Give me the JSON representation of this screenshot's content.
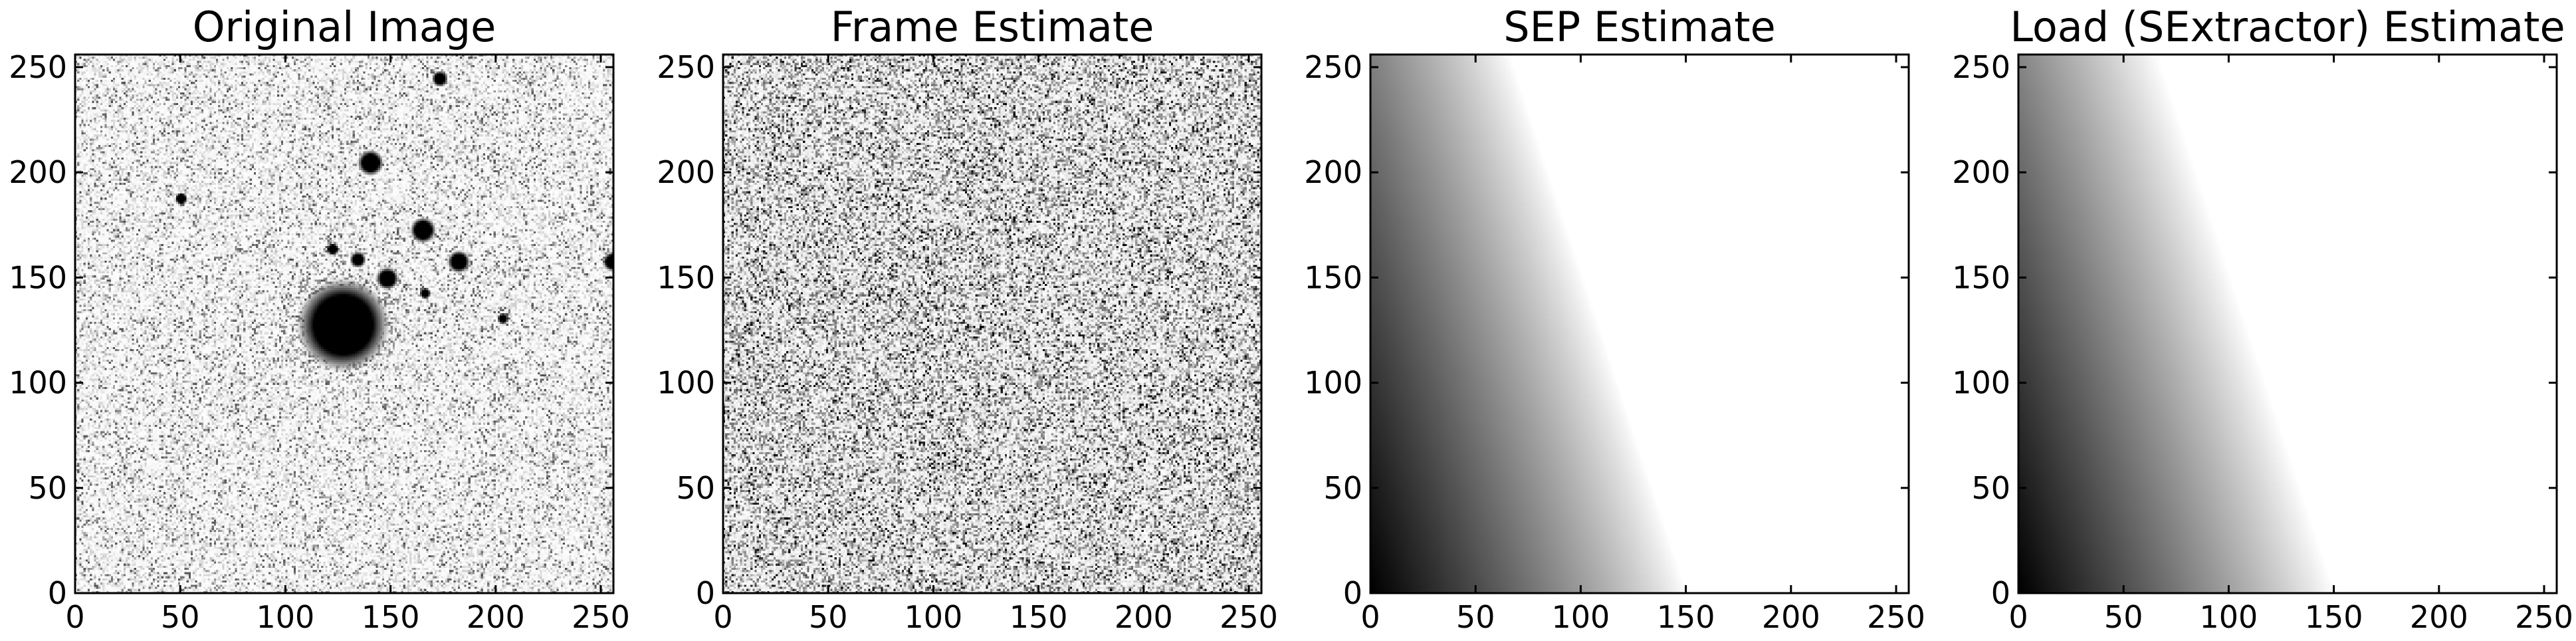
{
  "chart_data": [
    {
      "type": "heatmap",
      "title": "Original Image",
      "colormap": "gray_r",
      "content": "astronomical field: noisy sky background with a bright extended galaxy and several compact sources",
      "xlim": [
        0,
        256
      ],
      "ylim": [
        0,
        256
      ],
      "xticks": [
        0,
        50,
        100,
        150,
        200,
        250
      ],
      "yticks": [
        0,
        50,
        100,
        150,
        200,
        250
      ],
      "xlabel": "",
      "ylabel": "",
      "sources": [
        {
          "x": 127,
          "y": 127,
          "r": 14,
          "halo": 38
        },
        {
          "x": 140,
          "y": 204,
          "r": 4
        },
        {
          "x": 165,
          "y": 172,
          "r": 4
        },
        {
          "x": 182,
          "y": 157,
          "r": 3.5
        },
        {
          "x": 148,
          "y": 149,
          "r": 3.5
        },
        {
          "x": 134,
          "y": 158,
          "r": 2.5
        },
        {
          "x": 122,
          "y": 163,
          "r": 2
        },
        {
          "x": 173,
          "y": 244,
          "r": 2.5
        },
        {
          "x": 50,
          "y": 187,
          "r": 2
        },
        {
          "x": 203,
          "y": 130,
          "r": 1.8
        },
        {
          "x": 166,
          "y": 142,
          "r": 1.8
        },
        {
          "x": 255,
          "y": 157,
          "r": 3
        }
      ]
    },
    {
      "type": "heatmap",
      "title": "Frame Estimate",
      "colormap": "gray_r",
      "content": "uniform random noise",
      "xlim": [
        0,
        256
      ],
      "ylim": [
        0,
        256
      ],
      "xticks": [
        0,
        50,
        100,
        150,
        200,
        250
      ],
      "yticks": [
        0,
        50,
        100,
        150,
        200,
        250
      ],
      "xlabel": "",
      "ylabel": ""
    },
    {
      "type": "heatmap",
      "title": "SEP Estimate",
      "colormap": "gray_r",
      "content": "smooth gradient, darkest at lower-left, white beyond a diagonal boundary",
      "xlim": [
        0,
        256
      ],
      "ylim": [
        0,
        256
      ],
      "xticks": [
        0,
        50,
        100,
        150,
        200,
        250
      ],
      "yticks": [
        0,
        50,
        100,
        150,
        200,
        250
      ],
      "xlabel": "",
      "ylabel": ""
    },
    {
      "type": "heatmap",
      "title": "Load (SExtractor) Estimate",
      "colormap": "gray_r",
      "content": "smooth gradient, darkest at lower-left, white beyond a diagonal boundary",
      "xlim": [
        0,
        256
      ],
      "ylim": [
        0,
        256
      ],
      "xticks": [
        0,
        50,
        100,
        150,
        200,
        250
      ],
      "yticks": [
        0,
        50,
        100,
        150,
        200,
        250
      ],
      "xlabel": "",
      "ylabel": ""
    }
  ]
}
